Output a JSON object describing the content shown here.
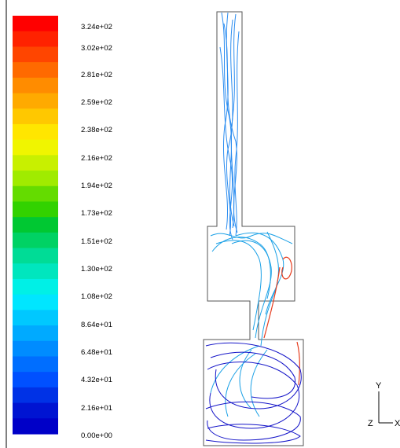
{
  "legend": {
    "colors": [
      "#ff0000",
      "#ff2200",
      "#ff4500",
      "#ff6a00",
      "#ff8c00",
      "#ffaa00",
      "#ffc800",
      "#ffe600",
      "#f0f500",
      "#c8f000",
      "#a0eb00",
      "#64dc00",
      "#32d200",
      "#00c832",
      "#00d264",
      "#00dc96",
      "#00e6be",
      "#00f0e6",
      "#00e6ff",
      "#00c8ff",
      "#00aaff",
      "#008cff",
      "#006eff",
      "#0050ff",
      "#0032e6",
      "#0014d2",
      "#0000c8"
    ],
    "labels": [
      "3.24e+02",
      "3.02e+02",
      "2.81e+02",
      "2.59e+02",
      "2.38e+02",
      "2.16e+02",
      "1.94e+02",
      "1.73e+02",
      "1.51e+02",
      "1.30e+02",
      "1.08e+02",
      "8.64e+01",
      "6.48e+01",
      "4.32e+01",
      "2.16e+01",
      "0.00e+00"
    ]
  },
  "axes": {
    "y_label": "Y",
    "x_label": "X",
    "z_label": "Z"
  },
  "palette": {
    "upper_lines": "#2a8cf0",
    "mid_lines": "#1aa0e6",
    "hot_lines": "#e63c1e",
    "low_lines": "#1414c8",
    "outline": "#555555"
  }
}
